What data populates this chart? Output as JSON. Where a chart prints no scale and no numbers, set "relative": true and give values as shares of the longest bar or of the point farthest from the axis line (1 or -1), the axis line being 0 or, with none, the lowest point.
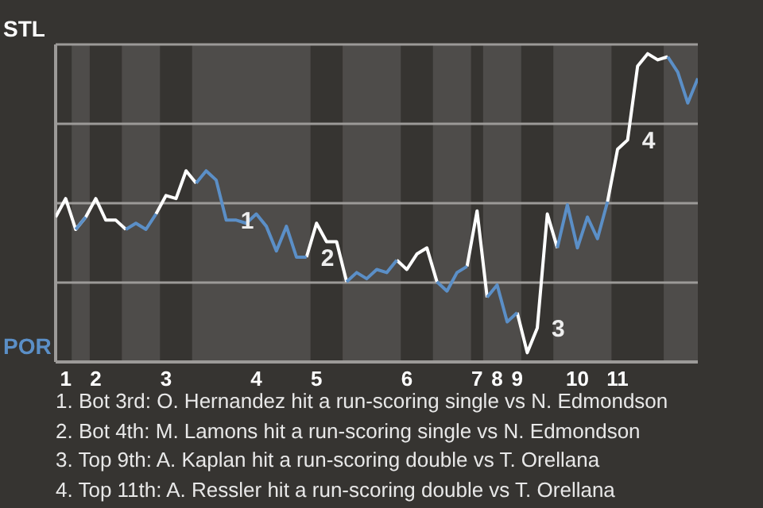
{
  "chart_data": {
    "type": "line",
    "relative": true,
    "categories": [
      null,
      "1",
      null,
      null,
      "2",
      null,
      null,
      null,
      null,
      null,
      null,
      "3",
      null,
      null,
      null,
      null,
      null,
      null,
      null,
      null,
      "4",
      null,
      null,
      null,
      null,
      null,
      "5",
      null,
      null,
      null,
      null,
      null,
      null,
      null,
      null,
      "6",
      null,
      null,
      null,
      null,
      null,
      null,
      "7",
      null,
      "8",
      null,
      "9",
      null,
      null,
      null,
      null,
      null,
      "10",
      null,
      null,
      null,
      "11",
      null,
      null,
      null,
      null,
      null,
      null,
      null,
      null
    ],
    "series": [
      {
        "color": "#ffffff",
        "values": [
          0.47,
          0.53,
          0.43,
          0.47,
          0.53,
          0.46,
          0.46,
          0.43,
          null,
          null,
          0.48,
          0.54,
          0.53,
          0.62,
          0.58,
          null,
          null,
          null,
          null,
          null,
          null,
          null,
          null,
          null,
          null,
          0.34,
          0.45,
          0.39,
          0.39,
          0.26,
          null,
          null,
          null,
          null,
          0.33,
          0.3,
          0.35,
          0.37,
          0.26,
          null,
          null,
          0.31,
          0.49,
          0.21,
          null,
          null,
          0.16,
          0.03,
          0.11,
          0.48,
          0.37,
          null,
          null,
          null,
          null,
          0.52,
          0.69,
          0.72,
          0.96,
          1,
          0.98,
          0.99,
          null,
          null,
          null
        ]
      },
      {
        "color": "#5b8fc7",
        "values": [
          null,
          null,
          0.43,
          0.47,
          null,
          null,
          null,
          0.43,
          0.45,
          0.43,
          0.48,
          null,
          null,
          null,
          0.58,
          0.62,
          0.59,
          0.46,
          0.46,
          0.45,
          0.48,
          0.44,
          0.36,
          0.44,
          0.34,
          0.34,
          null,
          null,
          null,
          0.26,
          0.29,
          0.27,
          0.3,
          0.29,
          0.33,
          null,
          null,
          null,
          0.26,
          0.23,
          0.29,
          0.31,
          null,
          0.21,
          0.25,
          0.13,
          0.16,
          null,
          null,
          null,
          0.37,
          0.51,
          0.37,
          0.47,
          0.4,
          0.52,
          null,
          null,
          null,
          null,
          null,
          0.99,
          0.94,
          0.84,
          0.92
        ]
      }
    ],
    "grid": "y",
    "legend": false,
    "marker": "none",
    "line_style": "solid",
    "annotations": [
      "STL",
      "POR",
      "1",
      "2",
      "3",
      "4",
      "1. Bot 3rd: O. Hernandez hit a run-scoring single vs N. Edmondson",
      "2. Bot 4th: M. Lamons hit a run-scoring single vs N. Edmondson",
      "3. Top 9th: A. Kaplan hit a run-scoring double vs T. Orellana",
      "4. Top 11th: A. Ressler hit a run-scoring double vs T. Orellana"
    ]
  }
}
